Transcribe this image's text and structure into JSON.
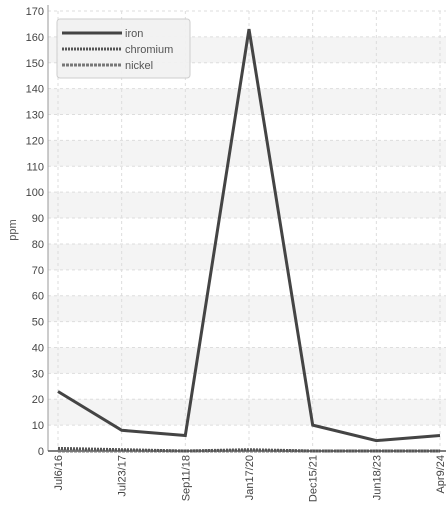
{
  "chart_data": {
    "type": "line",
    "title": "",
    "xlabel": "",
    "ylabel": "ppm",
    "ylim": [
      0,
      170
    ],
    "yticks": [
      0,
      10,
      20,
      30,
      40,
      50,
      60,
      70,
      80,
      90,
      100,
      110,
      120,
      130,
      140,
      150,
      160,
      170
    ],
    "categories": [
      "Jul6/16",
      "Jul23/17",
      "Sep11/18",
      "Jan17/20",
      "Dec15/21",
      "Jun18/23",
      "Apr9/24"
    ],
    "grid": true,
    "legend_position": "top-left",
    "series": [
      {
        "name": "iron",
        "values": [
          23,
          8,
          6,
          163,
          10,
          4,
          6
        ],
        "color": "#444444",
        "style": "solid"
      },
      {
        "name": "chromium",
        "values": [
          1,
          0.5,
          0,
          0.5,
          0,
          0,
          0
        ],
        "color": "#555555",
        "style": "dotted"
      },
      {
        "name": "nickel",
        "values": [
          0,
          0,
          0,
          0,
          0,
          0,
          0
        ],
        "color": "#777777",
        "style": "dashed"
      }
    ]
  }
}
